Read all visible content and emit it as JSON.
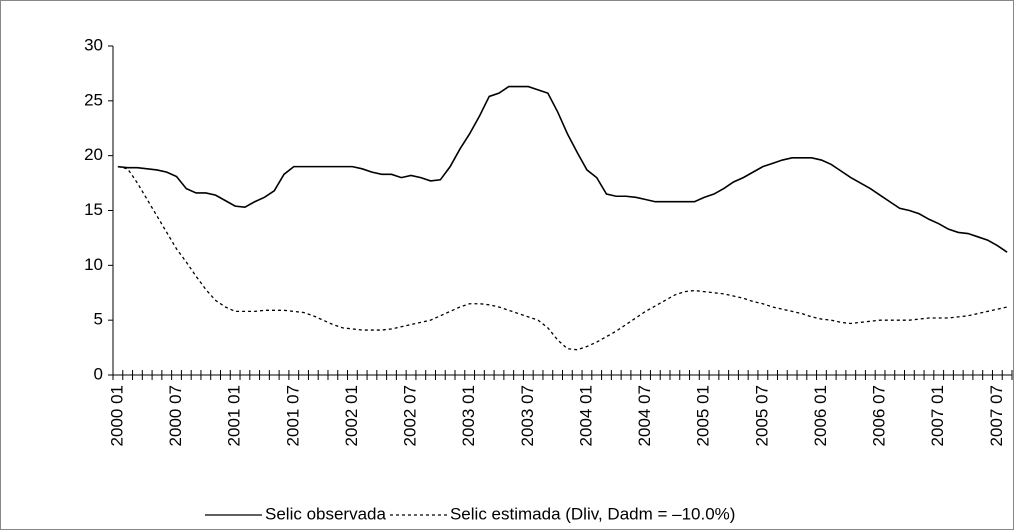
{
  "chart_data": {
    "type": "line",
    "categories": [
      "2000 01",
      null,
      null,
      null,
      null,
      null,
      "2000 07",
      null,
      null,
      null,
      null,
      null,
      "2001 01",
      null,
      null,
      null,
      null,
      null,
      "2001 07",
      null,
      null,
      null,
      null,
      null,
      "2002 01",
      null,
      null,
      null,
      null,
      null,
      "2002 07",
      null,
      null,
      null,
      null,
      null,
      "2003 01",
      null,
      null,
      null,
      null,
      null,
      "2003 07",
      null,
      null,
      null,
      null,
      null,
      "2004 01",
      null,
      null,
      null,
      null,
      null,
      "2004 07",
      null,
      null,
      null,
      null,
      null,
      "2005 01",
      null,
      null,
      null,
      null,
      null,
      "2005 07",
      null,
      null,
      null,
      null,
      null,
      "2006 01",
      null,
      null,
      null,
      null,
      null,
      "2006 07",
      null,
      null,
      null,
      null,
      null,
      "2007 01",
      null,
      null,
      null,
      null,
      null,
      "2007 07",
      null
    ],
    "series": [
      {
        "name": "Selic observada",
        "color": "#000000",
        "line_style": "solid",
        "values": [
          19.0,
          18.9,
          18.9,
          18.8,
          18.7,
          18.5,
          18.1,
          17.0,
          16.6,
          16.6,
          16.4,
          15.9,
          15.4,
          15.3,
          15.8,
          16.2,
          16.8,
          18.3,
          19.0,
          19.0,
          19.0,
          19.0,
          19.0,
          19.0,
          19.0,
          18.8,
          18.5,
          18.3,
          18.3,
          18.0,
          18.2,
          18.0,
          17.7,
          17.8,
          19.0,
          20.6,
          22.0,
          23.6,
          25.4,
          25.7,
          26.3,
          26.3,
          26.3,
          26.0,
          25.7,
          24.0,
          22.0,
          20.3,
          18.7,
          18.0,
          16.5,
          16.3,
          16.3,
          16.2,
          16.0,
          15.8,
          15.8,
          15.8,
          15.8,
          15.8,
          16.2,
          16.5,
          17.0,
          17.6,
          18.0,
          18.5,
          19.0,
          19.3,
          19.6,
          19.8,
          19.8,
          19.8,
          19.6,
          19.2,
          18.6,
          18.0,
          17.5,
          17.0,
          16.4,
          15.8,
          15.2,
          15.0,
          14.7,
          14.2,
          13.8,
          13.3,
          13.0,
          12.9,
          12.6,
          12.3,
          11.8,
          11.2
        ]
      },
      {
        "name": "Selic estimada (Dliv, Dadm = –10.0%)",
        "color": "#000000",
        "line_style": "dashed",
        "values": [
          19.0,
          18.8,
          17.5,
          16.0,
          14.5,
          13.0,
          11.5,
          10.3,
          9.0,
          7.8,
          6.8,
          6.2,
          5.8,
          5.8,
          5.8,
          5.9,
          5.9,
          5.9,
          5.8,
          5.7,
          5.4,
          5.0,
          4.6,
          4.3,
          4.2,
          4.1,
          4.1,
          4.1,
          4.2,
          4.4,
          4.6,
          4.8,
          5.0,
          5.4,
          5.8,
          6.2,
          6.5,
          6.5,
          6.4,
          6.2,
          5.9,
          5.6,
          5.3,
          5.0,
          4.3,
          3.2,
          2.4,
          2.3,
          2.6,
          3.0,
          3.5,
          4.0,
          4.6,
          5.2,
          5.8,
          6.3,
          6.8,
          7.3,
          7.6,
          7.7,
          7.6,
          7.5,
          7.4,
          7.2,
          7.0,
          6.7,
          6.5,
          6.2,
          6.0,
          5.8,
          5.6,
          5.3,
          5.1,
          5.0,
          4.8,
          4.7,
          4.8,
          4.9,
          5.0,
          5.0,
          5.0,
          5.0,
          5.1,
          5.2,
          5.2,
          5.2,
          5.3,
          5.4,
          5.6,
          5.8,
          6.0,
          6.2
        ]
      }
    ],
    "ylim": [
      0,
      30
    ],
    "yticks": [
      0,
      5,
      10,
      15,
      20,
      25,
      30
    ],
    "grid": false,
    "legend": "bottom"
  }
}
